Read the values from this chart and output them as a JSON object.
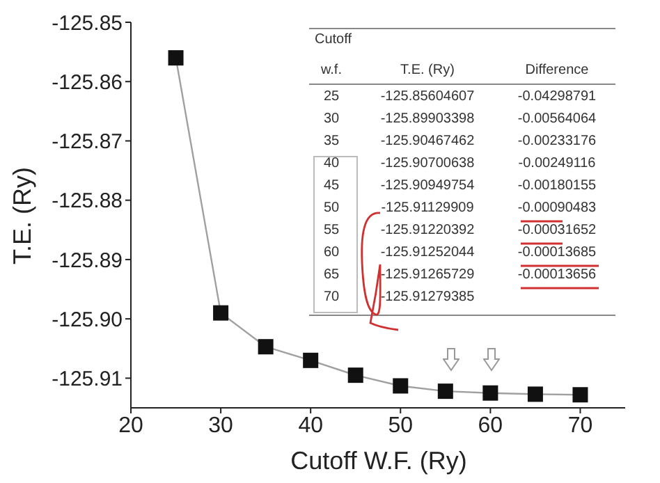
{
  "chart_data": {
    "type": "line",
    "xlabel": "Cutoff W.F. (Ry)",
    "ylabel": "T.E. (Ry)",
    "x": [
      25,
      30,
      35,
      40,
      45,
      50,
      55,
      60,
      65,
      70
    ],
    "series": [
      {
        "color": "#111111",
        "values": [
          -125.856,
          -125.899,
          -125.9047,
          -125.907,
          -125.9095,
          -125.9113,
          -125.9122,
          -125.9125,
          -125.9127,
          -125.9128
        ]
      }
    ],
    "xlim": [
      20,
      75
    ],
    "xticks": [
      20,
      30,
      40,
      50,
      60,
      70
    ],
    "ylim": [
      -125.915,
      -125.85
    ],
    "yticks": [
      -125.85,
      -125.86,
      -125.87,
      -125.88,
      -125.89,
      {
        "value": -125.9,
        "label": "-125.90"
      },
      -125.91
    ],
    "marker": "square",
    "grid": false,
    "legend": false,
    "annotations": [
      "Cutoff",
      "w.f.",
      "T.E. (Ry)",
      "Difference",
      "25",
      "-125.85604607",
      "-0.04298791",
      "30",
      "-125.89903398",
      "-0.00564064",
      "35",
      "-125.90467462",
      "-0.00233176",
      "40",
      "-125.90700638",
      "-0.00249116",
      "45",
      "-125.90949754",
      "-0.00180155",
      "50",
      "-125.91129909",
      "-0.00090483",
      "55",
      "-125.91220392",
      "-0.00031652",
      "60",
      "-125.91252044",
      "-0.00013685",
      "65",
      "-125.91265729",
      "-0.00013656",
      "70",
      "-125.91279385"
    ]
  }
}
